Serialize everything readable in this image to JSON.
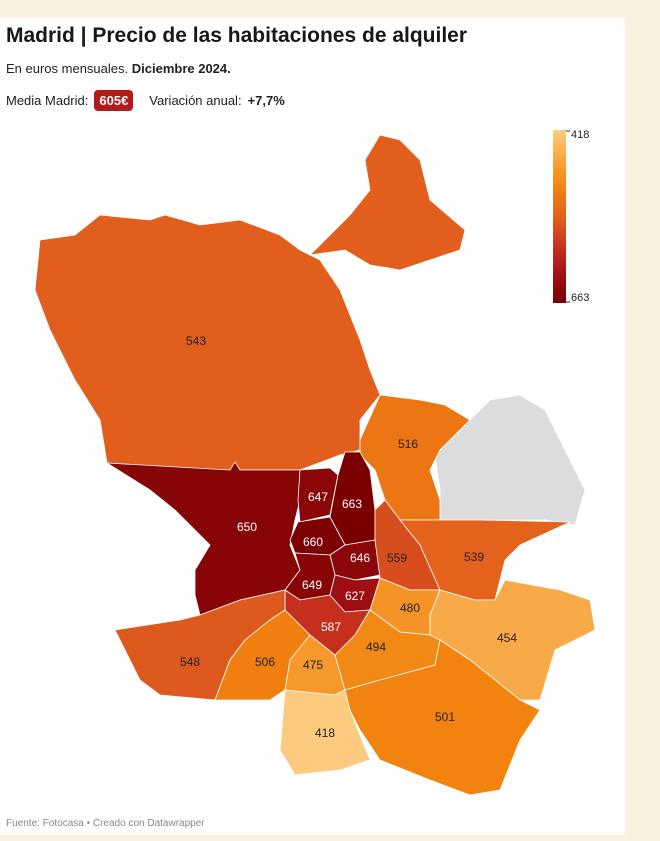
{
  "title": "Madrid | Precio de las habitaciones de alquiler",
  "subtitle": {
    "text": "En euros mensuales.",
    "bold": "Diciembre 2024."
  },
  "summary": {
    "label": "Media Madrid:",
    "badge": "605€",
    "variation_label": "Variación anual:",
    "variation": "+7,7%"
  },
  "map": {
    "type": "choropleth",
    "districts": [
      543,
      516,
      650,
      647,
      663,
      660,
      646,
      559,
      539,
      649,
      627,
      587,
      480,
      454,
      548,
      506,
      475,
      494,
      418,
      501
    ],
    "scale": {
      "min": 418,
      "max": 663,
      "colors": [
        "#fdcb80",
        "#f9a640",
        "#f2840e",
        "#e3611c",
        "#c9341f",
        "#a31015",
        "#7a0000"
      ]
    },
    "no_data_color": "#dcdcdc"
  },
  "source": "Fuente: Fotocasa • Creado con Datawrapper"
}
